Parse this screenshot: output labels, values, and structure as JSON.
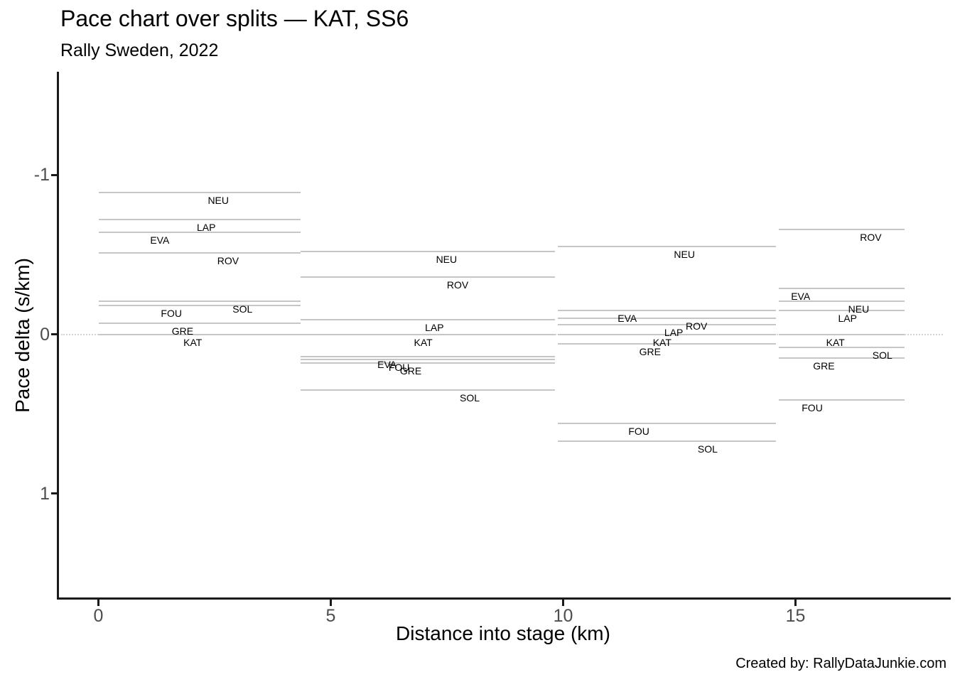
{
  "chart_data": {
    "type": "line",
    "title": "Pace chart over splits — KAT, SS6",
    "subtitle": "Rally Sweden, 2022",
    "xlabel": "Distance into stage (km)",
    "ylabel": "Pace delta (s/km)",
    "footer": "Created by: RallyDataJunkie.com",
    "reference_driver": "KAT",
    "drivers": [
      "NEU",
      "LAP",
      "EVA",
      "ROV",
      "SOL",
      "FOU",
      "GRE",
      "KAT"
    ],
    "grid": false,
    "legend": "none",
    "x_axis": {
      "ticks": [
        0,
        5,
        10,
        15
      ],
      "range": [
        -0.86,
        18.3
      ]
    },
    "y_axis": {
      "ticks": [
        -1,
        0,
        1
      ],
      "range": [
        -1.65,
        1.66
      ],
      "inverted": true,
      "zero_reference": 0
    },
    "colors": {
      "segment_line": "#c6c6c6",
      "zero_line": "#d4d4d4",
      "axis": "#1a1a1a",
      "tick_text": "#4d4d4d",
      "label_text": "#000000"
    },
    "splits": [
      {
        "start_km": 0.0,
        "end_km": 4.35,
        "entries": [
          {
            "driver": "NEU",
            "value": -0.89,
            "label_km": 2.58
          },
          {
            "driver": "LAP",
            "value": -0.72,
            "label_km": 2.32
          },
          {
            "driver": "EVA",
            "value": -0.64,
            "label_km": 1.32
          },
          {
            "driver": "ROV",
            "value": -0.51,
            "label_km": 2.79
          },
          {
            "driver": "SOL",
            "value": -0.21,
            "label_km": 3.1
          },
          {
            "driver": "FOU",
            "value": -0.18,
            "label_km": 1.57
          },
          {
            "driver": "GRE",
            "value": -0.07,
            "label_km": 1.81
          },
          {
            "driver": "KAT",
            "value": 0.0,
            "label_km": 2.03
          }
        ]
      },
      {
        "start_km": 4.35,
        "end_km": 9.82,
        "entries": [
          {
            "driver": "NEU",
            "value": -0.52,
            "label_km": 7.49
          },
          {
            "driver": "ROV",
            "value": -0.36,
            "label_km": 7.73
          },
          {
            "driver": "LAP",
            "value": -0.09,
            "label_km": 7.23
          },
          {
            "driver": "KAT",
            "value": 0.0,
            "label_km": 6.99
          },
          {
            "driver": "EVA",
            "value": 0.14,
            "label_km": 6.21
          },
          {
            "driver": "FOU",
            "value": 0.16,
            "label_km": 6.47
          },
          {
            "driver": "GRE",
            "value": 0.18,
            "label_km": 6.72
          },
          {
            "driver": "SOL",
            "value": 0.35,
            "label_km": 7.99
          }
        ]
      },
      {
        "start_km": 9.88,
        "end_km": 14.58,
        "entries": [
          {
            "driver": "NEU",
            "value": -0.55,
            "label_km": 12.61
          },
          {
            "driver": "EVA",
            "value": -0.15,
            "label_km": 11.38
          },
          {
            "driver": "ROV",
            "value": -0.1,
            "label_km": 12.87
          },
          {
            "driver": "LAP",
            "value": -0.06,
            "label_km": 12.38
          },
          {
            "driver": "KAT",
            "value": 0.0,
            "label_km": 12.13
          },
          {
            "driver": "GRE",
            "value": 0.06,
            "label_km": 11.87
          },
          {
            "driver": "FOU",
            "value": 0.56,
            "label_km": 11.63
          },
          {
            "driver": "SOL",
            "value": 0.67,
            "label_km": 13.11
          }
        ]
      },
      {
        "start_km": 14.64,
        "end_km": 17.35,
        "entries": [
          {
            "driver": "ROV",
            "value": -0.66,
            "label_km": 16.62
          },
          {
            "driver": "EVA",
            "value": -0.29,
            "label_km": 15.11
          },
          {
            "driver": "NEU",
            "value": -0.21,
            "label_km": 16.36
          },
          {
            "driver": "LAP",
            "value": -0.15,
            "label_km": 16.12
          },
          {
            "driver": "KAT",
            "value": 0.0,
            "label_km": 15.86
          },
          {
            "driver": "SOL",
            "value": 0.08,
            "label_km": 16.87
          },
          {
            "driver": "GRE",
            "value": 0.15,
            "label_km": 15.61
          },
          {
            "driver": "FOU",
            "value": 0.41,
            "label_km": 15.36
          }
        ]
      }
    ]
  }
}
